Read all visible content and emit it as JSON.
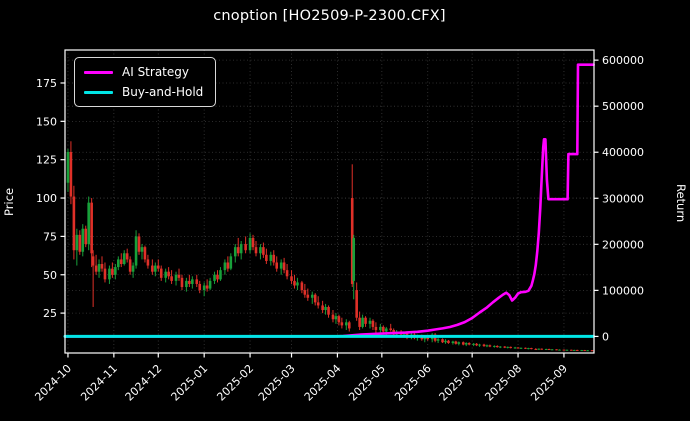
{
  "title": "cnoption [HO2509-P-2300.CFX]",
  "legend": {
    "items": [
      {
        "label": "AI Strategy",
        "color": "#ff00ff"
      },
      {
        "label": "Buy-and-Hold",
        "color": "#00e5e5"
      }
    ]
  },
  "chart_data": {
    "type": "candlestick+line",
    "title": "cnoption [HO2509-P-2300.CFX]",
    "x_axis": {
      "unit": "days since 2024-10-01",
      "domain": [
        -2,
        355.3
      ],
      "ticks": [
        {
          "label": "2024-10",
          "d": 0
        },
        {
          "label": "2024-11",
          "d": 31
        },
        {
          "label": "2024-12",
          "d": 61
        },
        {
          "label": "2025-01",
          "d": 92
        },
        {
          "label": "2025-02",
          "d": 123
        },
        {
          "label": "2025-03",
          "d": 151
        },
        {
          "label": "2025-04",
          "d": 182
        },
        {
          "label": "2025-05",
          "d": 212
        },
        {
          "label": "2025-06",
          "d": 243
        },
        {
          "label": "2025-07",
          "d": 273
        },
        {
          "label": "2025-08",
          "d": 304
        },
        {
          "label": "2025-09",
          "d": 335
        }
      ]
    },
    "price_axis": {
      "label": "Price",
      "range": [
        -1,
        196.5
      ],
      "ticks": [
        25,
        50,
        75,
        100,
        125,
        150,
        175
      ]
    },
    "return_axis": {
      "label": "Return",
      "range": [
        -36000,
        622000
      ],
      "ticks": [
        0,
        100000,
        200000,
        300000,
        400000,
        500000,
        600000
      ]
    },
    "colors": {
      "up": "#18a03a",
      "down": "#e03028",
      "ai_strategy": "#ff00ff",
      "buy_and_hold": "#00e5e5",
      "grid": "#3a3a3a",
      "spine": "#ffffff",
      "text": "#ffffff",
      "background": "#000000"
    },
    "grid": {
      "dotted": true,
      "vertical_on_months": true,
      "horizontal_on_both_axes": true
    },
    "legend_position": "upper-left",
    "series": [
      {
        "name": "AI Strategy",
        "type": "line",
        "axis": "return",
        "color": "#ff00ff",
        "points": [
          [
            -2,
            0
          ],
          [
            40,
            0
          ],
          [
            80,
            0
          ],
          [
            120,
            0
          ],
          [
            160,
            0
          ],
          [
            180,
            0
          ],
          [
            186,
            800
          ],
          [
            192,
            2500
          ],
          [
            198,
            4000
          ],
          [
            205,
            5200
          ],
          [
            212,
            6200
          ],
          [
            220,
            7200
          ],
          [
            228,
            8200
          ],
          [
            236,
            10000
          ],
          [
            243,
            12500
          ],
          [
            248,
            15000
          ],
          [
            253,
            17500
          ],
          [
            258,
            20500
          ],
          [
            263,
            25000
          ],
          [
            268,
            31000
          ],
          [
            273,
            40000
          ],
          [
            278,
            52000
          ],
          [
            283,
            63000
          ],
          [
            287,
            74000
          ],
          [
            291,
            84000
          ],
          [
            294,
            91000
          ],
          [
            296,
            95000
          ],
          [
            298,
            90000
          ],
          [
            300,
            78000
          ],
          [
            302,
            84000
          ],
          [
            304,
            93000
          ],
          [
            306,
            96000
          ],
          [
            309,
            97000
          ],
          [
            311,
            99000
          ],
          [
            313,
            110000
          ],
          [
            314,
            122000
          ],
          [
            315,
            135000
          ],
          [
            316,
            155000
          ],
          [
            317,
            185000
          ],
          [
            318,
            225000
          ],
          [
            319,
            280000
          ],
          [
            320,
            345000
          ],
          [
            321,
            410000
          ],
          [
            321.5,
            428000
          ],
          [
            322.5,
            428000
          ],
          [
            323.5,
            340000
          ],
          [
            324.5,
            298000
          ],
          [
            337.5,
            298000
          ],
          [
            338,
            396000
          ],
          [
            344,
            396000
          ],
          [
            344.5,
            590000
          ],
          [
            355,
            590000
          ]
        ]
      },
      {
        "name": "Buy-and-Hold",
        "type": "line",
        "axis": "return",
        "color": "#00e5e5",
        "points": [
          [
            -2,
            0
          ],
          [
            355,
            0
          ]
        ]
      }
    ],
    "candles_format": [
      "day",
      "open",
      "high",
      "low",
      "close"
    ],
    "candles": [
      [
        0,
        110,
        132,
        104,
        130
      ],
      [
        2,
        130,
        137,
        96,
        101
      ],
      [
        4,
        101,
        108,
        60,
        66
      ],
      [
        6,
        66,
        80,
        56,
        76
      ],
      [
        8,
        76,
        79,
        63,
        65
      ],
      [
        10,
        65,
        83,
        62,
        80
      ],
      [
        12,
        80,
        82,
        68,
        70
      ],
      [
        14,
        70,
        101,
        66,
        97
      ],
      [
        16,
        97,
        100,
        55,
        64
      ],
      [
        17,
        62,
        66,
        29,
        56
      ],
      [
        19,
        56,
        63,
        50,
        52
      ],
      [
        21,
        52,
        60,
        48,
        57
      ],
      [
        23,
        57,
        62,
        52,
        54
      ],
      [
        25,
        54,
        58,
        45,
        47
      ],
      [
        28,
        47,
        56,
        44,
        54
      ],
      [
        30,
        54,
        58,
        48,
        50
      ],
      [
        32,
        50,
        57,
        47,
        55
      ],
      [
        34,
        55,
        62,
        53,
        60
      ],
      [
        36,
        60,
        64,
        55,
        57
      ],
      [
        38,
        57,
        66,
        56,
        64
      ],
      [
        40,
        64,
        67,
        58,
        60
      ],
      [
        42,
        60,
        62,
        50,
        52
      ],
      [
        44,
        52,
        58,
        48,
        56
      ],
      [
        46,
        56,
        79,
        54,
        75
      ],
      [
        48,
        75,
        77,
        63,
        65
      ],
      [
        50,
        65,
        70,
        60,
        68
      ],
      [
        52,
        68,
        69,
        58,
        60
      ],
      [
        54,
        60,
        63,
        54,
        56
      ],
      [
        57,
        56,
        60,
        50,
        52
      ],
      [
        59,
        52,
        58,
        49,
        56
      ],
      [
        61,
        56,
        60,
        52,
        54
      ],
      [
        63,
        54,
        56,
        46,
        48
      ],
      [
        66,
        48,
        54,
        45,
        52
      ],
      [
        68,
        52,
        55,
        47,
        49
      ],
      [
        70,
        49,
        53,
        44,
        46
      ],
      [
        73,
        46,
        52,
        43,
        50
      ],
      [
        75,
        50,
        54,
        46,
        48
      ],
      [
        77,
        48,
        50,
        40,
        42
      ],
      [
        80,
        42,
        48,
        39,
        46
      ],
      [
        82,
        46,
        50,
        42,
        44
      ],
      [
        84,
        44,
        49,
        41,
        47
      ],
      [
        87,
        47,
        50,
        42,
        44
      ],
      [
        89,
        44,
        46,
        38,
        40
      ],
      [
        92,
        40,
        45,
        36,
        43
      ],
      [
        94,
        43,
        47,
        39,
        41
      ],
      [
        96,
        41,
        48,
        40,
        46
      ],
      [
        99,
        46,
        52,
        44,
        50
      ],
      [
        101,
        50,
        53,
        45,
        47
      ],
      [
        103,
        47,
        55,
        46,
        53
      ],
      [
        106,
        53,
        60,
        50,
        58
      ],
      [
        108,
        58,
        62,
        52,
        54
      ],
      [
        110,
        54,
        64,
        53,
        62
      ],
      [
        113,
        62,
        70,
        58,
        68
      ],
      [
        115,
        68,
        74,
        62,
        64
      ],
      [
        117,
        64,
        72,
        60,
        70
      ],
      [
        120,
        70,
        75,
        64,
        66
      ],
      [
        123,
        66,
        77,
        64,
        74
      ],
      [
        125,
        74,
        76,
        66,
        68
      ],
      [
        127,
        68,
        72,
        62,
        64
      ],
      [
        130,
        64,
        70,
        60,
        68
      ],
      [
        132,
        68,
        71,
        61,
        63
      ],
      [
        134,
        63,
        67,
        57,
        59
      ],
      [
        137,
        59,
        65,
        56,
        63
      ],
      [
        139,
        63,
        66,
        56,
        58
      ],
      [
        141,
        58,
        62,
        52,
        54
      ],
      [
        144,
        54,
        60,
        50,
        58
      ],
      [
        146,
        58,
        61,
        51,
        53
      ],
      [
        148,
        53,
        57,
        47,
        49
      ],
      [
        151,
        49,
        53,
        44,
        46
      ],
      [
        153,
        46,
        50,
        41,
        43
      ],
      [
        155,
        43,
        48,
        40,
        45
      ],
      [
        158,
        45,
        46,
        38,
        40
      ],
      [
        160,
        40,
        44,
        35,
        37
      ],
      [
        162,
        37,
        41,
        33,
        35
      ],
      [
        165,
        35,
        39,
        31,
        37
      ],
      [
        167,
        37,
        38,
        30,
        32
      ],
      [
        169,
        32,
        36,
        28,
        30
      ],
      [
        172,
        30,
        33,
        25,
        27
      ],
      [
        174,
        27,
        31,
        24,
        29
      ],
      [
        176,
        29,
        30,
        22,
        24
      ],
      [
        179,
        24,
        27,
        19,
        21
      ],
      [
        181,
        21,
        25,
        18,
        23
      ],
      [
        183,
        23,
        24,
        17,
        19
      ],
      [
        185,
        19,
        22,
        15,
        17
      ],
      [
        188,
        17,
        21,
        14,
        19
      ],
      [
        190,
        19,
        20,
        13,
        15
      ],
      [
        192,
        100,
        122,
        42,
        44
      ],
      [
        193,
        46,
        76,
        34,
        74
      ],
      [
        195,
        40,
        45,
        20,
        22
      ],
      [
        197,
        22,
        26,
        14,
        16
      ],
      [
        199,
        16,
        24,
        15,
        22
      ],
      [
        201,
        22,
        23,
        16,
        18
      ],
      [
        204,
        18,
        22,
        15,
        20
      ],
      [
        206,
        20,
        21,
        14,
        16
      ],
      [
        208,
        16,
        19,
        12,
        14
      ],
      [
        211,
        14,
        18,
        12,
        16
      ],
      [
        213,
        16,
        17,
        11,
        13
      ],
      [
        215,
        13,
        16,
        10,
        15
      ],
      [
        218,
        15,
        18,
        13,
        14
      ],
      [
        220,
        14,
        15,
        10,
        11
      ],
      [
        222,
        11,
        14,
        9,
        13
      ],
      [
        225,
        13,
        14,
        10,
        11
      ],
      [
        227,
        11,
        13,
        9,
        12
      ],
      [
        229,
        12,
        13,
        8,
        9
      ],
      [
        232,
        9,
        12,
        8,
        11
      ],
      [
        234,
        11,
        12,
        8,
        9
      ],
      [
        236,
        9,
        11,
        7,
        10
      ],
      [
        239,
        10,
        11,
        7,
        8
      ],
      [
        241,
        8,
        10,
        6,
        9
      ],
      [
        243,
        9,
        10,
        7,
        8
      ],
      [
        246,
        8,
        12,
        6,
        11
      ],
      [
        248,
        11,
        12,
        6,
        7
      ],
      [
        250,
        7,
        9,
        5.5,
        8
      ],
      [
        253,
        8,
        8.5,
        5.5,
        6
      ],
      [
        255,
        6,
        8,
        5,
        7
      ],
      [
        257,
        7,
        7.5,
        5,
        5.5
      ],
      [
        260,
        5.5,
        7,
        4.5,
        6.5
      ],
      [
        262,
        6.5,
        7,
        4.5,
        5
      ],
      [
        264,
        5,
        6.5,
        4,
        6
      ],
      [
        267,
        6,
        6.5,
        4,
        4.5
      ],
      [
        269,
        4.5,
        6,
        3.5,
        5.5
      ],
      [
        271,
        5.5,
        6,
        4,
        4.5
      ],
      [
        274,
        4.5,
        5.5,
        3.5,
        5
      ],
      [
        276,
        5,
        5.5,
        3.5,
        4
      ],
      [
        278,
        4,
        5,
        3,
        4.5
      ],
      [
        281,
        4.5,
        5,
        3,
        3.5
      ],
      [
        283,
        3.5,
        4.5,
        2.8,
        4
      ],
      [
        285,
        4,
        4.5,
        2.8,
        3.2
      ],
      [
        288,
        3.2,
        4,
        2.5,
        3.6
      ],
      [
        290,
        3.6,
        4,
        2.5,
        2.8
      ],
      [
        292,
        2.8,
        3.5,
        2.2,
        3.2
      ],
      [
        295,
        3.2,
        3.5,
        2.2,
        2.5
      ],
      [
        297,
        2.5,
        3.2,
        2,
        3
      ],
      [
        299,
        3,
        3.2,
        2,
        2.2
      ],
      [
        302,
        2.2,
        3,
        1.8,
        2.6
      ],
      [
        304,
        2.6,
        2.8,
        1.8,
        2
      ],
      [
        306,
        2,
        2.6,
        1.6,
        2.4
      ],
      [
        309,
        2.4,
        2.6,
        1.6,
        1.8
      ],
      [
        311,
        1.8,
        2.4,
        1.4,
        2.2
      ],
      [
        313,
        2.2,
        2.4,
        1.4,
        1.6
      ],
      [
        316,
        1.6,
        2.2,
        1.2,
        1.4
      ],
      [
        318,
        1.4,
        2,
        1.1,
        1.8
      ],
      [
        320,
        1.8,
        2,
        1.1,
        1.3
      ],
      [
        323,
        1.3,
        1.8,
        1,
        1.6
      ],
      [
        325,
        1.6,
        1.8,
        1,
        1.2
      ],
      [
        327,
        1.2,
        1.6,
        0.9,
        1.4
      ],
      [
        330,
        1.4,
        1.5,
        0.8,
        1
      ],
      [
        332,
        1,
        1.4,
        0.8,
        1.2
      ],
      [
        335,
        1.2,
        1.3,
        0.7,
        0.9
      ],
      [
        337,
        0.9,
        1.2,
        0.6,
        1.1
      ],
      [
        340,
        1.1,
        1.2,
        0.6,
        0.8
      ],
      [
        342,
        0.8,
        1.1,
        0.5,
        1
      ],
      [
        344,
        1,
        1.1,
        0.5,
        0.7
      ],
      [
        347,
        0.7,
        1,
        0.4,
        0.9
      ],
      [
        349,
        0.9,
        1,
        0.4,
        0.6
      ],
      [
        351,
        0.6,
        0.9,
        0.3,
        0.8
      ],
      [
        354,
        0.8,
        0.9,
        0.3,
        0.5
      ]
    ]
  }
}
